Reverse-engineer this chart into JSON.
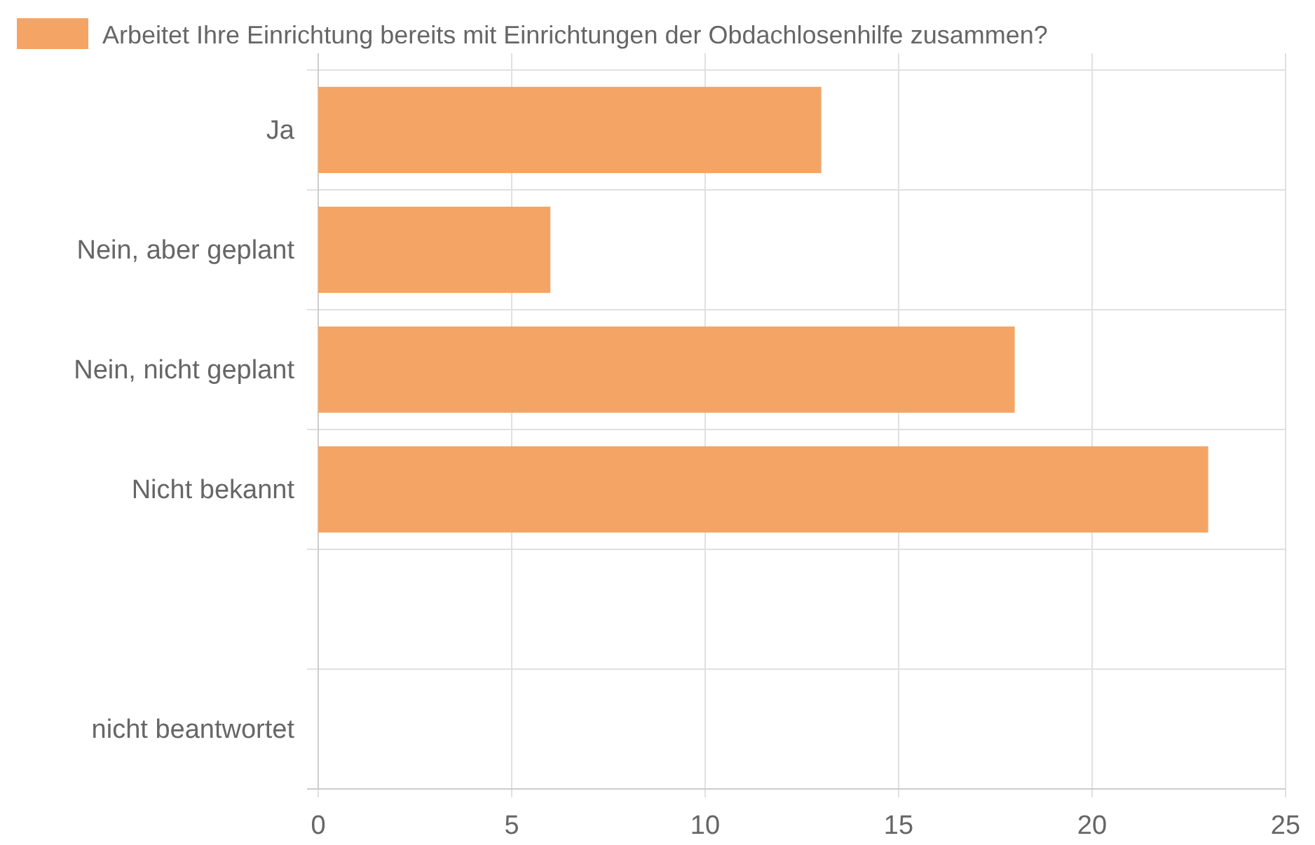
{
  "chart_data": {
    "type": "bar",
    "orientation": "horizontal",
    "categories": [
      "Ja",
      "Nein, aber geplant",
      "Nein, nicht geplant",
      "Nicht bekannt",
      null,
      "nicht beantwortet"
    ],
    "series": [
      {
        "name": "Arbeitet Ihre Einrichtung bereits mit Einrichtungen der Obdachlosenhilfe zusammen?",
        "color": "#f4a566",
        "values": [
          13,
          6,
          18,
          23,
          null,
          0
        ]
      }
    ],
    "xlim": [
      0,
      25
    ],
    "xticks": [
      0,
      5,
      10,
      15,
      20,
      25
    ],
    "grid": true,
    "legend": "top"
  }
}
